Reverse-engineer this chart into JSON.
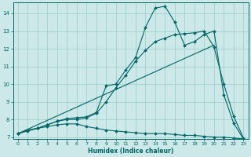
{
  "xlabel": "Humidex (Indice chaleur)",
  "bg_color": "#cce8e8",
  "line_color": "#006666",
  "grid_color": "#99cccc",
  "xlim": [
    -0.5,
    23.5
  ],
  "ylim": [
    6.9,
    14.6
  ],
  "yticks": [
    7,
    8,
    9,
    10,
    11,
    12,
    13,
    14
  ],
  "xticks": [
    0,
    1,
    2,
    3,
    4,
    5,
    6,
    7,
    8,
    9,
    10,
    11,
    12,
    13,
    14,
    15,
    16,
    17,
    18,
    19,
    20,
    21,
    22,
    23
  ],
  "series1_x": [
    0,
    1,
    2,
    3,
    4,
    5,
    6,
    7,
    8,
    9,
    10,
    11,
    12,
    13,
    14,
    15,
    16,
    17,
    18,
    19,
    20,
    21,
    22,
    23
  ],
  "series1_y": [
    7.2,
    7.35,
    7.5,
    7.6,
    7.7,
    7.75,
    7.75,
    7.6,
    7.5,
    7.4,
    7.35,
    7.3,
    7.25,
    7.2,
    7.2,
    7.2,
    7.15,
    7.1,
    7.1,
    7.05,
    7.0,
    7.0,
    6.95,
    6.9
  ],
  "series2_x": [
    0,
    1,
    2,
    3,
    4,
    5,
    6,
    7,
    8,
    9,
    10,
    11,
    12,
    13,
    14,
    15,
    16,
    17,
    18,
    19,
    20,
    21,
    22,
    23
  ],
  "series2_y": [
    7.2,
    7.4,
    7.5,
    7.7,
    7.9,
    8.05,
    8.1,
    8.15,
    8.4,
    9.9,
    10.0,
    10.8,
    11.5,
    13.2,
    14.3,
    14.4,
    13.5,
    12.2,
    12.4,
    12.8,
    13.0,
    9.4,
    7.8,
    6.9
  ],
  "series3_x": [
    0,
    1,
    2,
    3,
    4,
    5,
    6,
    7,
    8,
    9,
    10,
    11,
    12,
    13,
    14,
    15,
    16,
    17,
    18,
    19,
    20,
    21,
    22,
    23
  ],
  "series3_y": [
    7.2,
    7.4,
    7.5,
    7.7,
    7.9,
    8.0,
    8.0,
    8.1,
    8.35,
    9.0,
    9.8,
    10.5,
    11.3,
    11.9,
    12.4,
    12.6,
    12.8,
    12.85,
    12.9,
    13.0,
    12.1,
    10.0,
    8.2,
    6.95
  ],
  "series4_x": [
    0,
    20
  ],
  "series4_y": [
    7.2,
    12.2
  ]
}
